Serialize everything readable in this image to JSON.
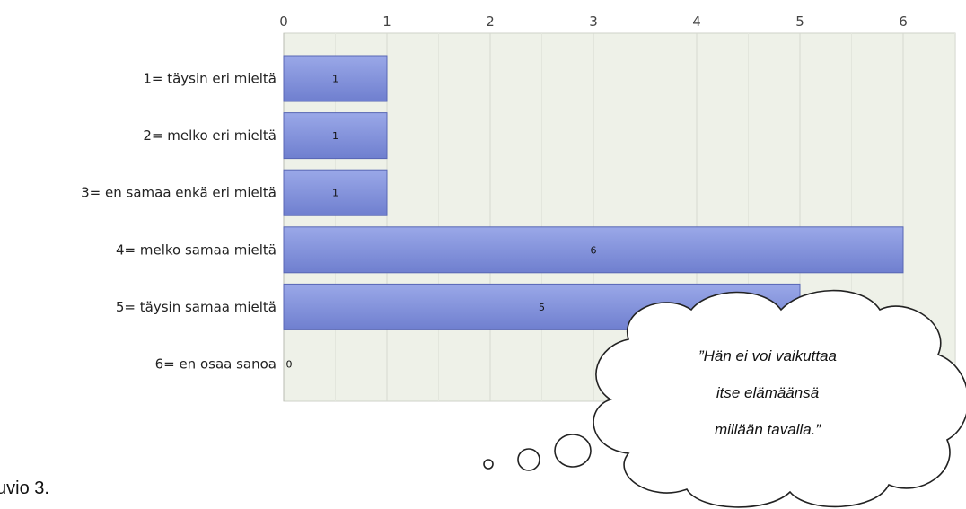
{
  "chart_data": {
    "type": "bar",
    "orientation": "horizontal",
    "categories": [
      "1= täysin eri mieltä",
      "2= melko eri mieltä",
      "3= en samaa enkä eri mieltä",
      "4= melko samaa mieltä",
      "5= täysin samaa mieltä",
      "6= en osaa sanoa"
    ],
    "values": [
      1,
      1,
      1,
      6,
      5,
      0
    ],
    "data_labels": [
      "1",
      "1",
      "1",
      "6",
      "5",
      "0"
    ],
    "xlim": [
      0,
      6.5
    ],
    "x_ticks": [
      "0",
      "1",
      "2",
      "3",
      "4",
      "5",
      "6"
    ],
    "grid": true,
    "title": "",
    "xlabel": "",
    "ylabel": ""
  },
  "colors": {
    "bar_fill_top": "#9aa8e8",
    "bar_fill_bottom": "#6f7fcf",
    "bar_stroke": "#5866b4",
    "plot_background": "#eef1e8",
    "gridline": "#d6d9d0"
  },
  "callout": {
    "lines": [
      "”Hän ei voi vaikuttaa",
      "itse elämäänsä",
      "millään tavalla.”"
    ]
  },
  "caption": "uvio 3."
}
